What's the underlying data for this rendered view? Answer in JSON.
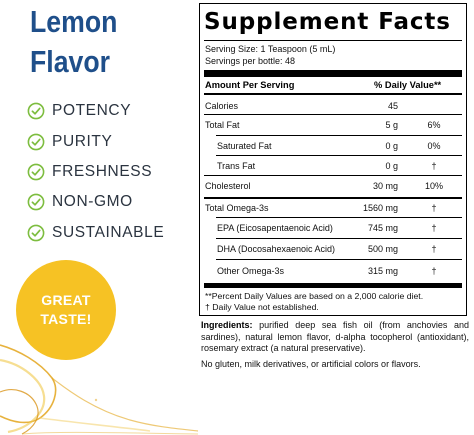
{
  "flavor_title": [
    "Lemon",
    "Flavor"
  ],
  "features": [
    "POTENCY",
    "PURITY",
    "FRESHNESS",
    "NON-GMO",
    "SUSTAINABLE"
  ],
  "badge": [
    "GREAT",
    "TASTE!"
  ],
  "colors": {
    "title": "#1f4f8a",
    "check": "#7dbd3f",
    "badge": "#f6c224",
    "oil": "#e3a51b"
  },
  "icons": {
    "feature": "check-circle-icon",
    "art": "oil-splash"
  },
  "facts": {
    "title": "Supplement Facts",
    "serving_size": "Serving Size: 1 Teaspoon (5 mL)",
    "servings_per_bottle": "Servings per bottle: 48",
    "header_amount": "Amount Per Serving",
    "header_dv": "% Daily Value**",
    "rows": [
      {
        "label": "Calories",
        "amount": "45",
        "dv": ""
      },
      {
        "label": "Total Fat",
        "amount": "5 g",
        "dv": "6%"
      },
      {
        "label": "Saturated Fat",
        "amount": "0 g",
        "dv": "0%"
      },
      {
        "label": "Trans Fat",
        "amount": "0 g",
        "dv": "†"
      },
      {
        "label": "Cholesterol",
        "amount": "30 mg",
        "dv": "10%"
      },
      {
        "label": "Total Omega-3s",
        "amount": "1560 mg",
        "dv": "†"
      },
      {
        "label": "EPA (Eicosapentaenoic Acid)",
        "amount": "745 mg",
        "dv": "†"
      },
      {
        "label": "DHA (Docosahexaenoic Acid)",
        "amount": "500 mg",
        "dv": "†"
      },
      {
        "label": "Other Omega-3s",
        "amount": "315 mg",
        "dv": "†"
      }
    ],
    "footnote_1": "**Percent Daily Values are based on a 2,000 calorie diet.",
    "footnote_2": "†  Daily Value not established."
  },
  "ingredients_label": "Ingredients:",
  "ingredients_text": "purified deep sea fish oil (from anchovies and sardines), natural lemon flavor, d-alpha tocopherol (antioxidant), rosemary extract (a natural preservative).",
  "allergen_note": "No gluten, milk derivatives, or artificial colors or flavors."
}
